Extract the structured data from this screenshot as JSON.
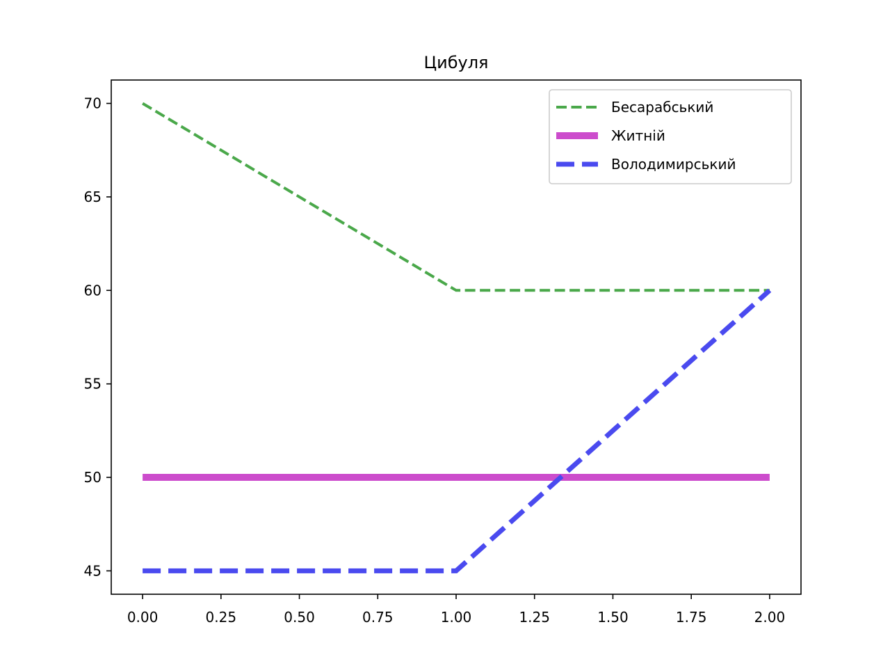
{
  "chart_data": {
    "type": "line",
    "title": "Цибуля",
    "xlabel": "",
    "ylabel": "",
    "x": [
      0,
      1,
      2
    ],
    "xlim": [
      -0.1,
      2.1
    ],
    "ylim": [
      43.75,
      71.25
    ],
    "xticks": [
      0.0,
      0.25,
      0.5,
      0.75,
      1.0,
      1.25,
      1.5,
      1.75,
      2.0
    ],
    "xtick_labels": [
      "0.00",
      "0.25",
      "0.50",
      "0.75",
      "1.00",
      "1.25",
      "1.50",
      "1.75",
      "2.00"
    ],
    "yticks": [
      45,
      50,
      55,
      60,
      65,
      70
    ],
    "ytick_labels": [
      "45",
      "50",
      "55",
      "60",
      "65",
      "70"
    ],
    "grid": false,
    "legend_position": "top-right",
    "series": [
      {
        "name": "Бесарабський",
        "values": [
          70,
          60,
          60
        ],
        "color": "#4aa84a",
        "style": "dashed"
      },
      {
        "name": "Житній",
        "values": [
          50,
          50,
          50
        ],
        "color": "#cc4ccc",
        "style": "solid"
      },
      {
        "name": "Володимирський",
        "values": [
          45,
          45,
          60
        ],
        "color": "#4a4aef",
        "style": "dashed-thick"
      }
    ]
  }
}
